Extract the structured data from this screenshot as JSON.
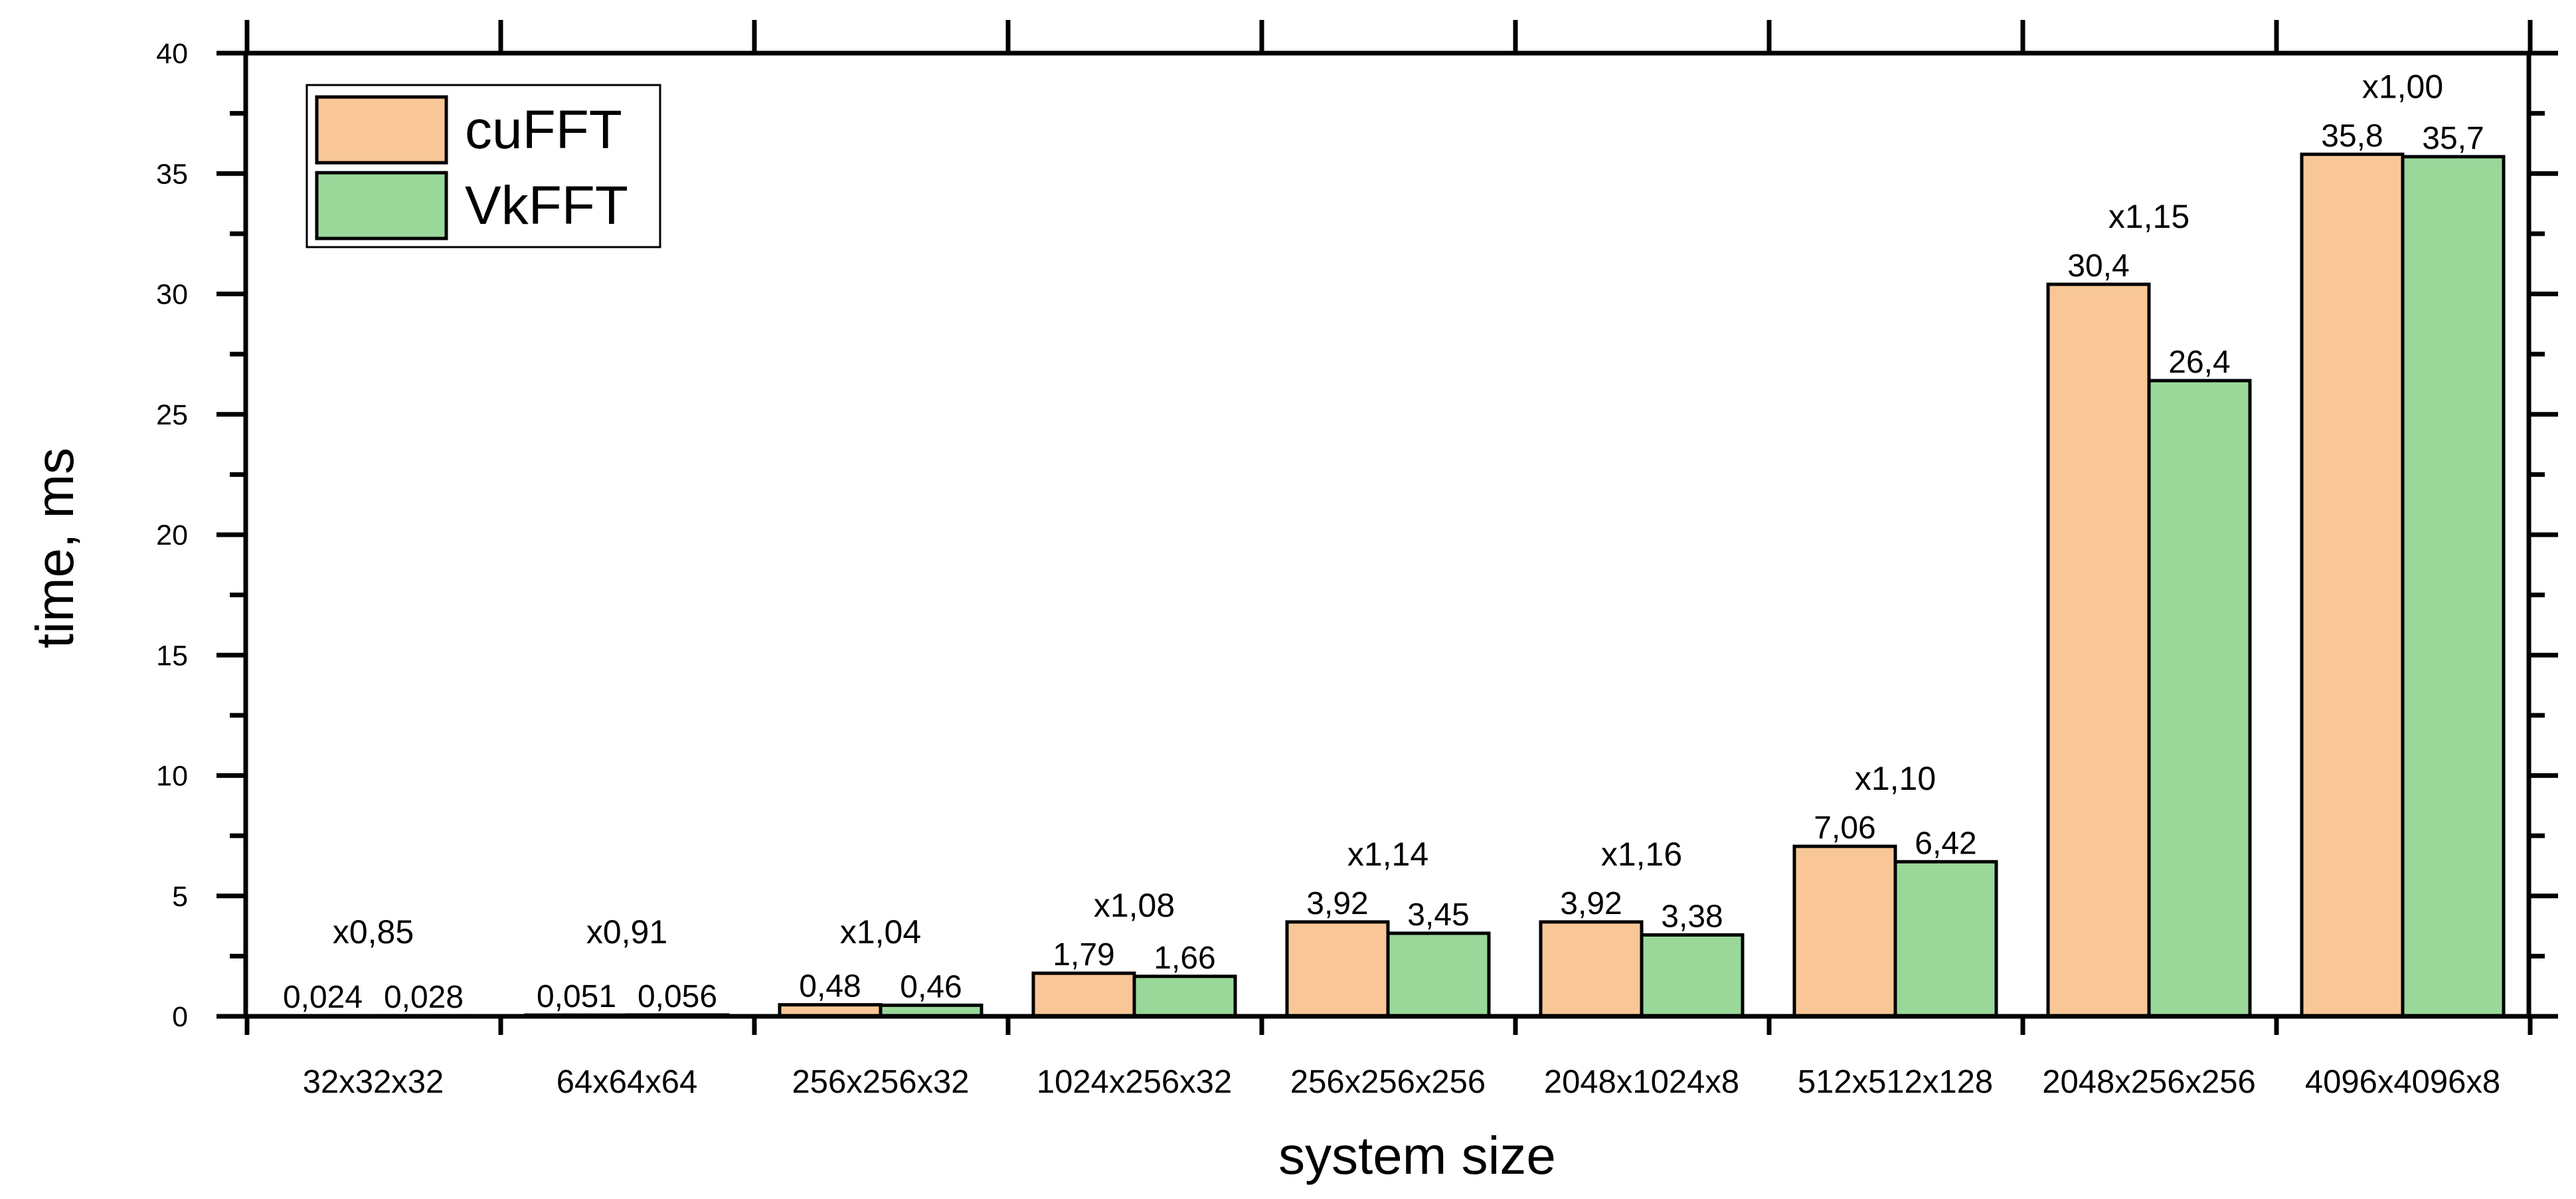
{
  "chart_data": {
    "type": "bar",
    "xlabel": "system size",
    "ylabel": "time, ms",
    "ylim": [
      0,
      40
    ],
    "yticks": [
      0,
      5,
      10,
      15,
      20,
      25,
      30,
      35,
      40
    ],
    "grid": false,
    "legend_position": "top-left",
    "categories": [
      "32x32x32",
      "64x64x64",
      "256x256x32",
      "1024x256x32",
      "256x256x256",
      "2048x1024x8",
      "512x512x128",
      "2048x256x256",
      "4096x4096x8"
    ],
    "series": [
      {
        "name": "cuFFT",
        "color": "#F9C797",
        "values": [
          0.024,
          0.051,
          0.48,
          1.79,
          3.92,
          3.92,
          7.06,
          30.4,
          35.8
        ],
        "labels": [
          "0,024",
          "0,051",
          "0,48",
          "1,79",
          "3,92",
          "3,92",
          "7,06",
          "30,4",
          "35,8"
        ]
      },
      {
        "name": "VkFFT",
        "color": "#9AD89A",
        "values": [
          0.028,
          0.056,
          0.46,
          1.66,
          3.45,
          3.38,
          6.42,
          26.4,
          35.7
        ],
        "labels": [
          "0,028",
          "0,056",
          "0,46",
          "1,66",
          "3,45",
          "3,38",
          "6,42",
          "26,4",
          "35,7"
        ]
      }
    ],
    "ratios": [
      "x0,85",
      "x0,91",
      "x1,04",
      "x1,08",
      "x1,14",
      "x1,16",
      "x1,10",
      "x1,15",
      "x1,00"
    ],
    "ytick_labels": [
      "0",
      "5",
      "10",
      "15",
      "20",
      "25",
      "30",
      "35",
      "40"
    ]
  }
}
